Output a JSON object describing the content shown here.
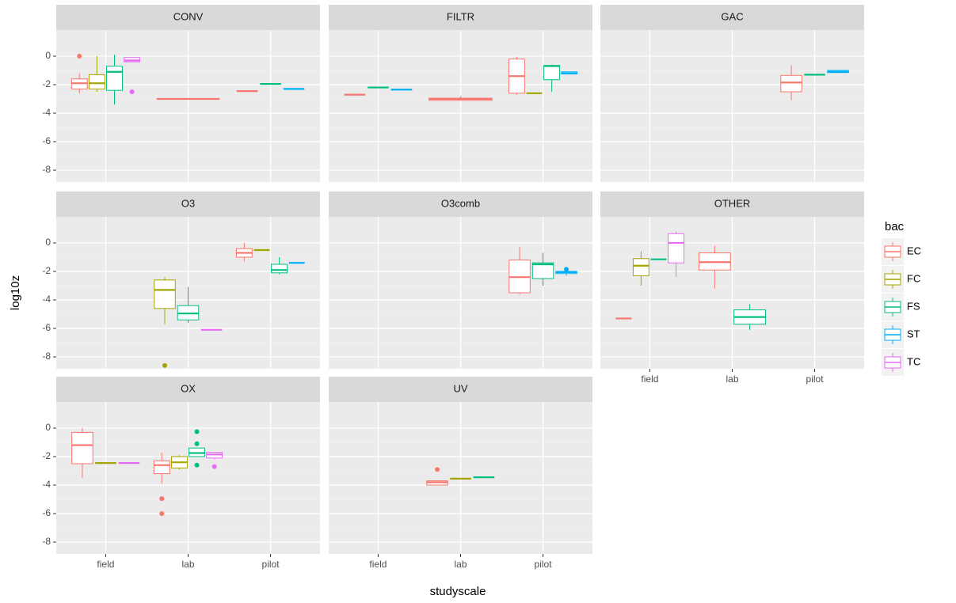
{
  "chart_data": {
    "type": "box",
    "x_label": "studyscale",
    "y_label": "log10z",
    "legend_title": "bac",
    "categories": [
      "field",
      "lab",
      "pilot"
    ],
    "ylim": [
      -8.83,
      1.83
    ],
    "yticks": [
      0,
      -2,
      -4,
      -6,
      -8
    ],
    "grid": true,
    "legend_position": "right",
    "series": [
      {
        "name": "EC",
        "color": "#F8766D"
      },
      {
        "name": "FC",
        "color": "#A3A500"
      },
      {
        "name": "FS",
        "color": "#00BF7D"
      },
      {
        "name": "ST",
        "color": "#00B0F6"
      },
      {
        "name": "TC",
        "color": "#E76BF3"
      }
    ],
    "panels": [
      {
        "title": "CONV",
        "boxes": [
          {
            "x": "field",
            "bac": "EC",
            "min": -2.6,
            "q1": -2.3,
            "median": -1.9,
            "q3": -1.6,
            "max": -1.2,
            "outliers": [
              0
            ]
          },
          {
            "x": "field",
            "bac": "FC",
            "min": -2.5,
            "q1": -2.3,
            "median": -1.9,
            "q3": -1.3,
            "max": 0
          },
          {
            "x": "field",
            "bac": "FS",
            "min": -3.4,
            "q1": -2.4,
            "median": -1.1,
            "q3": -0.7,
            "max": 0.1
          },
          {
            "x": "field",
            "bac": "TC",
            "min": -0.4,
            "q1": -0.4,
            "median": -0.3,
            "q3": -0.1,
            "max": -0.1,
            "outliers": [
              -2.5
            ]
          },
          {
            "x": "lab",
            "bac": "EC",
            "min": -3.0,
            "q1": -3.0,
            "median": -3.0,
            "q3": -3.0,
            "max": -3.0
          },
          {
            "x": "pilot",
            "bac": "EC",
            "min": -2.45,
            "q1": -2.45,
            "median": -2.45,
            "q3": -2.45,
            "max": -2.45
          },
          {
            "x": "pilot",
            "bac": "FS",
            "min": -1.95,
            "q1": -1.95,
            "median": -1.95,
            "q3": -1.95,
            "max": -1.95
          },
          {
            "x": "pilot",
            "bac": "ST",
            "min": -2.3,
            "q1": -2.3,
            "median": -2.3,
            "q3": -2.3,
            "max": -2.3
          }
        ]
      },
      {
        "title": "FILTR",
        "boxes": [
          {
            "x": "field",
            "bac": "EC",
            "min": -2.7,
            "q1": -2.7,
            "median": -2.7,
            "q3": -2.7,
            "max": -2.7
          },
          {
            "x": "field",
            "bac": "FS",
            "min": -2.2,
            "q1": -2.2,
            "median": -2.2,
            "q3": -2.2,
            "max": -2.2
          },
          {
            "x": "field",
            "bac": "ST",
            "min": -2.35,
            "q1": -2.35,
            "median": -2.35,
            "q3": -2.35,
            "max": -2.35
          },
          {
            "x": "lab",
            "bac": "EC",
            "min": -3.1,
            "q1": -3.1,
            "median": -3.0,
            "q3": -2.95,
            "max": -2.8
          },
          {
            "x": "pilot",
            "bac": "EC",
            "min": -2.7,
            "q1": -2.6,
            "median": -1.4,
            "q3": -0.2,
            "max": -0.05
          },
          {
            "x": "pilot",
            "bac": "FC",
            "min": -2.6,
            "q1": -2.6,
            "median": -2.6,
            "q3": -2.6,
            "max": -2.6
          },
          {
            "x": "pilot",
            "bac": "FS",
            "min": -2.5,
            "q1": -1.65,
            "median": -0.7,
            "q3": -0.65,
            "max": -0.6
          },
          {
            "x": "pilot",
            "bac": "ST",
            "min": -1.25,
            "q1": -1.25,
            "median": -1.2,
            "q3": -1.1,
            "max": -1.1
          }
        ]
      },
      {
        "title": "GAC",
        "boxes": [
          {
            "x": "pilot",
            "bac": "EC",
            "min": -3.1,
            "q1": -2.5,
            "median": -1.85,
            "q3": -1.35,
            "max": -0.65
          },
          {
            "x": "pilot",
            "bac": "FS",
            "min": -1.3,
            "q1": -1.3,
            "median": -1.3,
            "q3": -1.3,
            "max": -1.3
          },
          {
            "x": "pilot",
            "bac": "ST",
            "min": -1.15,
            "q1": -1.15,
            "median": -1.1,
            "q3": -1.0,
            "max": -1.0
          }
        ]
      },
      {
        "title": "O3",
        "boxes": [
          {
            "x": "lab",
            "bac": "FC",
            "min": -5.7,
            "q1": -4.6,
            "median": -3.3,
            "q3": -2.6,
            "max": -2.4,
            "outliers": [
              -8.6
            ]
          },
          {
            "x": "lab",
            "bac": "FS",
            "min": -5.6,
            "q1": -5.4,
            "median": -4.95,
            "q3": -4.4,
            "max": -3.1
          },
          {
            "x": "lab",
            "bac": "TC",
            "min": -6.1,
            "q1": -6.1,
            "median": -6.1,
            "q3": -6.1,
            "max": -6.1
          },
          {
            "x": "pilot",
            "bac": "EC",
            "min": -1.3,
            "q1": -1.0,
            "median": -0.7,
            "q3": -0.4,
            "max": 0
          },
          {
            "x": "pilot",
            "bac": "FC",
            "min": -0.5,
            "q1": -0.5,
            "median": -0.5,
            "q3": -0.5,
            "max": -0.5
          },
          {
            "x": "pilot",
            "bac": "FS",
            "min": -2.2,
            "q1": -2.1,
            "median": -1.9,
            "q3": -1.5,
            "max": -1.0
          },
          {
            "x": "pilot",
            "bac": "ST",
            "min": -1.4,
            "q1": -1.4,
            "median": -1.4,
            "q3": -1.4,
            "max": -1.4
          }
        ]
      },
      {
        "title": "O3comb",
        "boxes": [
          {
            "x": "pilot",
            "bac": "EC",
            "min": -3.6,
            "q1": -3.5,
            "median": -2.4,
            "q3": -1.2,
            "max": -0.3
          },
          {
            "x": "pilot",
            "bac": "FS",
            "min": -3.0,
            "q1": -2.5,
            "median": -1.5,
            "q3": -1.4,
            "max": -0.7
          },
          {
            "x": "pilot",
            "bac": "ST",
            "min": -2.3,
            "q1": -2.15,
            "median": -2.05,
            "q3": -2.0,
            "max": -1.95,
            "outliers": [
              -1.85
            ]
          }
        ]
      },
      {
        "title": "OTHER",
        "boxes": [
          {
            "x": "field",
            "bac": "EC",
            "min": -5.3,
            "q1": -5.3,
            "median": -5.3,
            "q3": -5.3,
            "max": -5.3
          },
          {
            "x": "field",
            "bac": "FC",
            "min": -3.0,
            "q1": -2.3,
            "median": -1.6,
            "q3": -1.1,
            "max": -0.6
          },
          {
            "x": "field",
            "bac": "FS",
            "min": -1.15,
            "q1": -1.15,
            "median": -1.15,
            "q3": -1.15,
            "max": -1.15
          },
          {
            "x": "field",
            "bac": "TC",
            "min": -2.4,
            "q1": -1.4,
            "median": 0,
            "q3": 0.65,
            "max": 0.8
          },
          {
            "x": "lab",
            "bac": "EC",
            "min": -3.2,
            "q1": -1.9,
            "median": -1.35,
            "q3": -0.7,
            "max": -0.2
          },
          {
            "x": "lab",
            "bac": "FS",
            "min": -6.1,
            "q1": -5.7,
            "median": -5.2,
            "q3": -4.7,
            "max": -4.3
          }
        ]
      },
      {
        "title": "OX",
        "boxes": [
          {
            "x": "field",
            "bac": "EC",
            "min": -3.5,
            "q1": -2.5,
            "median": -1.2,
            "q3": -0.3,
            "max": 0
          },
          {
            "x": "field",
            "bac": "FC",
            "min": -2.45,
            "q1": -2.45,
            "median": -2.45,
            "q3": -2.45,
            "max": -2.45
          },
          {
            "x": "field",
            "bac": "TC",
            "min": -2.45,
            "q1": -2.45,
            "median": -2.45,
            "q3": -2.45,
            "max": -2.45
          },
          {
            "x": "lab",
            "bac": "EC",
            "min": -3.9,
            "q1": -3.2,
            "median": -2.6,
            "q3": -2.3,
            "max": -1.7,
            "outliers": [
              -4.95,
              -6.0
            ]
          },
          {
            "x": "lab",
            "bac": "FC",
            "min": -2.9,
            "q1": -2.8,
            "median": -2.4,
            "q3": -2.0,
            "max": -1.9
          },
          {
            "x": "lab",
            "bac": "FS",
            "min": -2.0,
            "q1": -2.0,
            "median": -1.75,
            "q3": -1.4,
            "max": -1.4,
            "outliers": [
              -0.25,
              -1.1,
              -2.6
            ]
          },
          {
            "x": "lab",
            "bac": "TC",
            "min": -2.2,
            "q1": -2.1,
            "median": -1.85,
            "q3": -1.7,
            "max": -1.7,
            "outliers": [
              -2.7
            ]
          }
        ]
      },
      {
        "title": "UV",
        "boxes": [
          {
            "x": "lab",
            "bac": "EC",
            "min": -4.0,
            "q1": -4.0,
            "median": -3.8,
            "q3": -3.7,
            "max": -3.7,
            "outliers": [
              -2.9
            ]
          },
          {
            "x": "lab",
            "bac": "FC",
            "min": -3.55,
            "q1": -3.55,
            "median": -3.55,
            "q3": -3.55,
            "max": -3.55
          },
          {
            "x": "lab",
            "bac": "FS",
            "min": -3.45,
            "q1": -3.45,
            "median": -3.45,
            "q3": -3.45,
            "max": -3.45
          }
        ]
      }
    ]
  }
}
